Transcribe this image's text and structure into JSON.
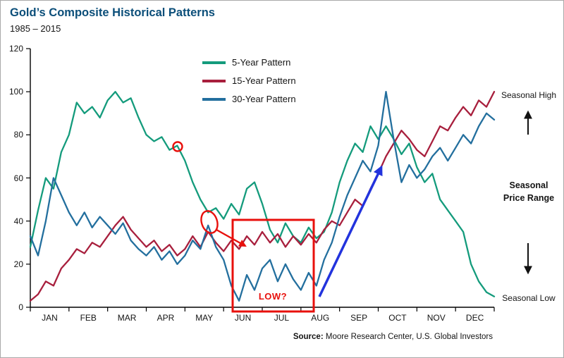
{
  "header": {
    "title": "Gold’s Composite Historical Patterns",
    "subtitle": "1985 – 2015"
  },
  "footer": {
    "source_label": "Source:",
    "source_text": "Moore Research Center, U.S. Global Investors"
  },
  "side_labels": {
    "high": "Seasonal High",
    "range_line1": "Seasonal",
    "range_line2": "Price Range",
    "low": "Seasonal Low"
  },
  "annotations": {
    "low_question": "LOW?",
    "red_circle": "highlight on 5-year pattern peak in late April",
    "red_ellipse_arrow": "highlight on mid-May decline pointing into summer low box",
    "blue_arrow": "rise from August low toward October high"
  },
  "colors": {
    "title": "#0b4e79",
    "series_5yr": "#149b7c",
    "series_15yr": "#a81f3d",
    "series_30yr": "#236f9e",
    "annotation_red": "#e8100c",
    "annotation_blue": "#2233dd",
    "axis": "#000000"
  },
  "chart_data": {
    "type": "line",
    "title": "Gold’s Composite Historical Patterns",
    "subtitle": "1985 – 2015",
    "grid": false,
    "legend_position": "top-left-of-plot",
    "xlabel": "",
    "ylabel": "",
    "ylim": [
      0,
      120
    ],
    "yticks": [
      0,
      20,
      40,
      60,
      80,
      100,
      120
    ],
    "months": [
      "JAN",
      "FEB",
      "MAR",
      "APR",
      "MAY",
      "JUN",
      "JUL",
      "AUG",
      "SEP",
      "OCT",
      "NOV",
      "DEC"
    ],
    "x_unit": "month position (0 = start JAN, 12 = end DEC)",
    "x": [
      0,
      0.2,
      0.4,
      0.6,
      0.8,
      1,
      1.2,
      1.4,
      1.6,
      1.8,
      2,
      2.2,
      2.4,
      2.6,
      2.8,
      3,
      3.2,
      3.4,
      3.6,
      3.8,
      4,
      4.2,
      4.4,
      4.6,
      4.8,
      5,
      5.2,
      5.4,
      5.6,
      5.8,
      6,
      6.2,
      6.4,
      6.6,
      6.8,
      7,
      7.2,
      7.4,
      7.6,
      7.8,
      8,
      8.2,
      8.4,
      8.6,
      8.8,
      9,
      9.2,
      9.4,
      9.6,
      9.8,
      10,
      10.2,
      10.4,
      10.6,
      10.8,
      11,
      11.2,
      11.4,
      11.6,
      11.8,
      12
    ],
    "series": [
      {
        "name": "5-Year Pattern",
        "color": "#149b7c",
        "y": [
          28,
          45,
          60,
          55,
          72,
          80,
          95,
          90,
          93,
          88,
          96,
          100,
          95,
          97,
          88,
          80,
          77,
          79,
          73,
          75,
          68,
          58,
          50,
          44,
          46,
          41,
          48,
          43,
          55,
          58,
          48,
          36,
          30,
          39,
          33,
          30,
          37,
          32,
          35,
          44,
          58,
          68,
          76,
          72,
          84,
          78,
          84,
          78,
          71,
          76,
          65,
          58,
          62,
          50,
          45,
          40,
          35,
          20,
          12,
          7,
          5
        ]
      },
      {
        "name": "15-Year Pattern",
        "color": "#a81f3d",
        "y": [
          3,
          6,
          12,
          10,
          18,
          22,
          27,
          25,
          30,
          28,
          33,
          38,
          42,
          36,
          32,
          28,
          31,
          26,
          29,
          24,
          27,
          33,
          28,
          35,
          30,
          26,
          31,
          27,
          33,
          29,
          35,
          30,
          34,
          28,
          33,
          29,
          34,
          30,
          36,
          40,
          38,
          44,
          50,
          47,
          55,
          62,
          70,
          76,
          82,
          78,
          73,
          70,
          77,
          84,
          82,
          88,
          93,
          89,
          96,
          93,
          100
        ]
      },
      {
        "name": "30-Year Pattern",
        "color": "#236f9e",
        "y": [
          33,
          24,
          40,
          60,
          52,
          44,
          38,
          44,
          37,
          42,
          38,
          34,
          39,
          31,
          27,
          24,
          28,
          22,
          26,
          20,
          24,
          31,
          27,
          38,
          28,
          22,
          10,
          3,
          15,
          8,
          18,
          22,
          12,
          20,
          13,
          8,
          16,
          10,
          22,
          30,
          42,
          52,
          60,
          68,
          63,
          75,
          100,
          78,
          58,
          66,
          60,
          64,
          70,
          74,
          68,
          74,
          80,
          76,
          84,
          90,
          87
        ]
      }
    ],
    "annotations": [
      {
        "type": "circle",
        "color": "#e8100c",
        "x_month": 3.8,
        "y_value": 75,
        "note": "circled 5-year peak late April"
      },
      {
        "type": "ellipse-with-arrow",
        "color": "#e8100c",
        "x_month": 4.6,
        "y_value": 39,
        "note": "mid-May drop, arrow points to summer-low box"
      },
      {
        "type": "box",
        "label": "LOW?",
        "color": "#e8100c",
        "x_month_range": [
          5.25,
          7.35
        ],
        "y_value_range": [
          0,
          41
        ]
      },
      {
        "type": "arrow",
        "color": "#2233dd",
        "from": {
          "x_month": 7.5,
          "y_value": 5
        },
        "to": {
          "x_month": 9.1,
          "y_value": 66
        }
      }
    ]
  }
}
